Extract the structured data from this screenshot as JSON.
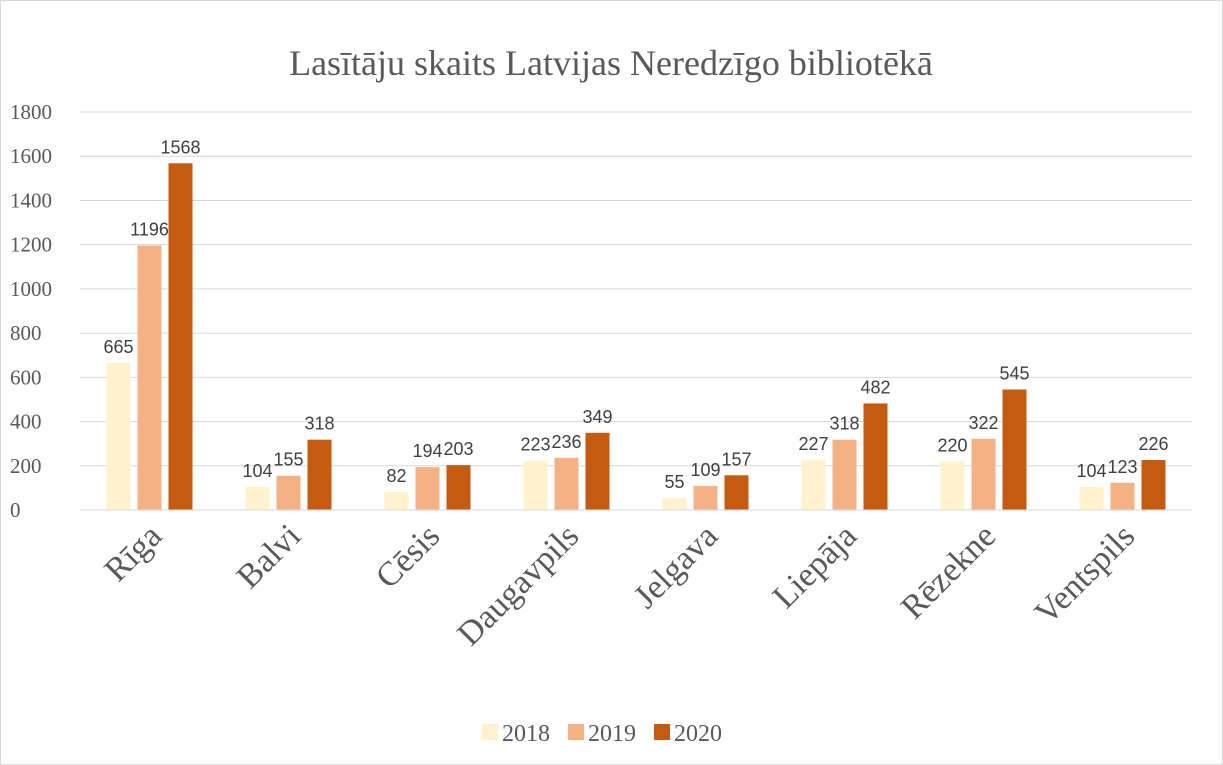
{
  "chart_data": {
    "type": "bar",
    "title": "Lasītāju skaits Latvijas Neredzīgo bibliotēkā",
    "categories": [
      "Rīga",
      "Balvi",
      "Cēsis",
      "Daugavpils",
      "Jelgava",
      "Liepāja",
      "Rēzekne",
      "Ventspils"
    ],
    "series": [
      {
        "name": "2018",
        "color": "#fff2cc",
        "values": [
          665,
          104,
          82,
          223,
          55,
          227,
          220,
          104
        ]
      },
      {
        "name": "2019",
        "color": "#f4b183",
        "values": [
          1196,
          155,
          194,
          236,
          109,
          318,
          322,
          123
        ]
      },
      {
        "name": "2020",
        "color": "#c55a11",
        "values": [
          1568,
          318,
          203,
          349,
          157,
          482,
          545,
          226
        ]
      }
    ],
    "ylim": [
      0,
      1800
    ],
    "yticks": [
      0,
      200,
      400,
      600,
      800,
      1000,
      1200,
      1400,
      1600,
      1800
    ],
    "grid": true,
    "legend": "bottom"
  }
}
